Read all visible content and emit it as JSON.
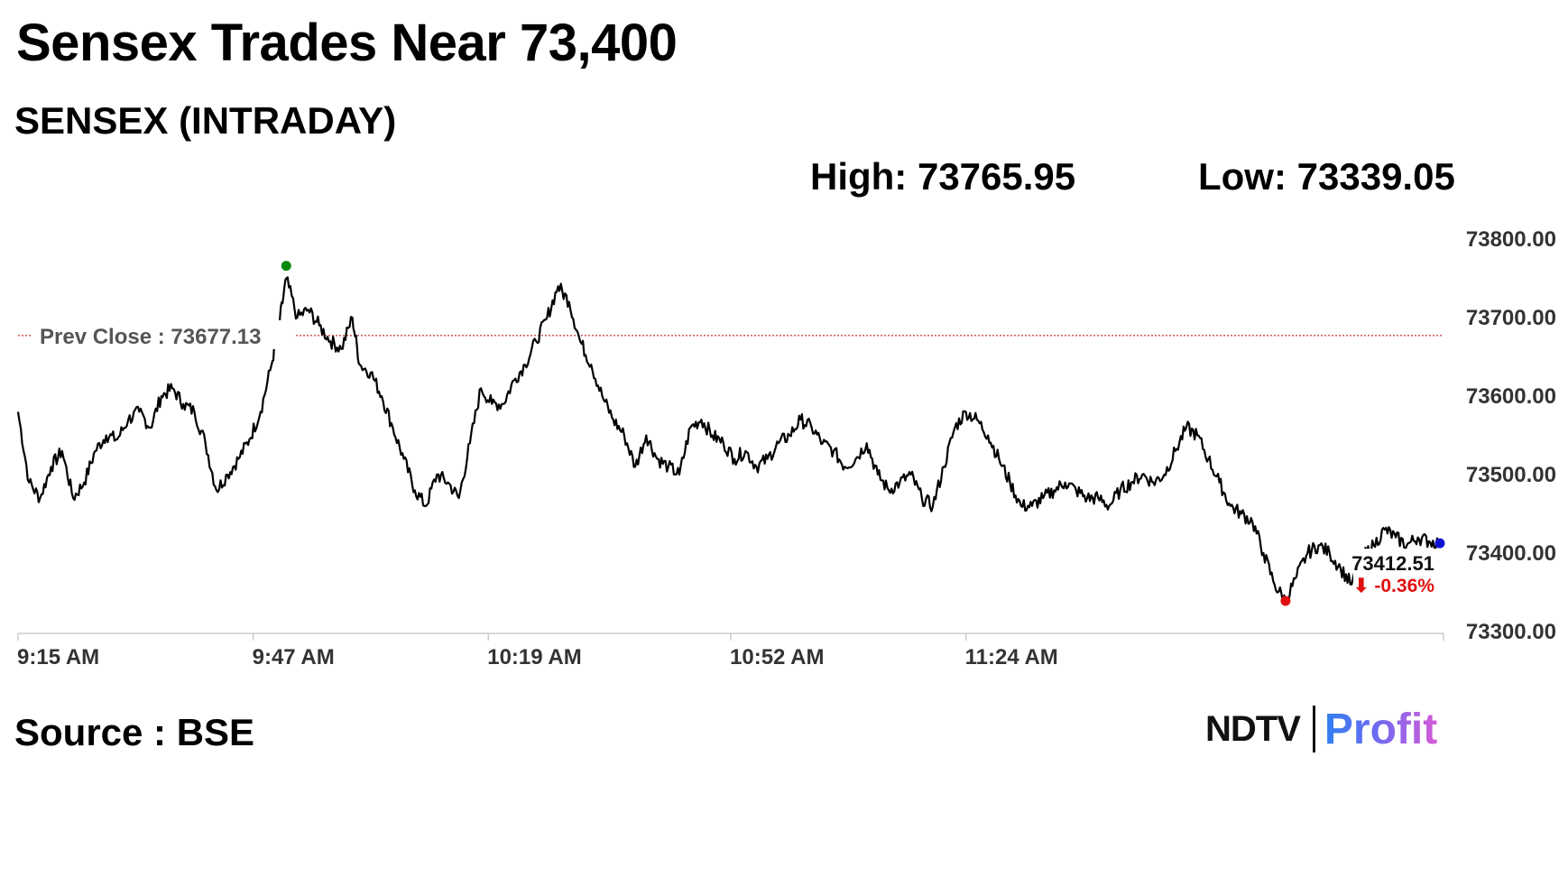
{
  "headline": "Sensex Trades Near 73,400",
  "subtitle": "SENSEX (INTRADAY)",
  "high_label": "High: 73765.95",
  "low_label": "Low: 73339.05",
  "source": "Source : BSE",
  "logo": {
    "ndtv": "NDTV",
    "profit": "Profit"
  },
  "chart_data": {
    "type": "line",
    "series": [
      {
        "points": [
          [
            0,
            73580
          ],
          [
            1.5,
            73490
          ],
          [
            3,
            73470
          ],
          [
            4.5,
            73510
          ],
          [
            6,
            73530
          ],
          [
            7.5,
            73470
          ],
          [
            9,
            73490
          ],
          [
            10.5,
            73530
          ],
          [
            12,
            73550
          ],
          [
            13.5,
            73545
          ],
          [
            15,
            73570
          ],
          [
            16.5,
            73580
          ],
          [
            18,
            73560
          ],
          [
            19.5,
            73600
          ],
          [
            21,
            73610
          ],
          [
            22.5,
            73590
          ],
          [
            24,
            73580
          ],
          [
            25.5,
            73540
          ],
          [
            27,
            73480
          ],
          [
            28.5,
            73500
          ],
          [
            30,
            73520
          ],
          [
            31.5,
            73545
          ],
          [
            33,
            73580
          ],
          [
            34.5,
            73640
          ],
          [
            35.5,
            73690
          ],
          [
            36.5,
            73750
          ],
          [
            38,
            73700
          ],
          [
            39.5,
            73710
          ],
          [
            41,
            73690
          ],
          [
            42.5,
            73670
          ],
          [
            44,
            73660
          ],
          [
            45.5,
            73700
          ],
          [
            46.5,
            73640
          ],
          [
            48,
            73630
          ],
          [
            49.5,
            73600
          ],
          [
            51,
            73560
          ],
          [
            52.5,
            73520
          ],
          [
            54,
            73480
          ],
          [
            55.5,
            73460
          ],
          [
            57,
            73500
          ],
          [
            58.5,
            73490
          ],
          [
            60,
            73470
          ],
          [
            61.5,
            73540
          ],
          [
            63,
            73610
          ],
          [
            64.5,
            73590
          ],
          [
            66,
            73590
          ],
          [
            67.5,
            73620
          ],
          [
            69,
            73640
          ],
          [
            70.5,
            73670
          ],
          [
            72,
            73700
          ],
          [
            73.5,
            73740
          ],
          [
            75,
            73720
          ],
          [
            76.5,
            73670
          ],
          [
            78,
            73640
          ],
          [
            79.5,
            73600
          ],
          [
            81,
            73570
          ],
          [
            82.5,
            73550
          ],
          [
            84,
            73510
          ],
          [
            85.5,
            73550
          ],
          [
            87,
            73520
          ],
          [
            88.5,
            73510
          ],
          [
            90,
            73500
          ],
          [
            91.5,
            73560
          ],
          [
            93,
            73570
          ],
          [
            94.5,
            73550
          ],
          [
            96,
            73540
          ],
          [
            97.5,
            73520
          ],
          [
            99,
            73530
          ],
          [
            100.5,
            73510
          ],
          [
            102,
            73520
          ],
          [
            103.5,
            73540
          ],
          [
            105,
            73550
          ],
          [
            106.5,
            73570
          ],
          [
            108,
            73560
          ],
          [
            109.5,
            73540
          ],
          [
            111,
            73530
          ],
          [
            112.5,
            73510
          ],
          [
            114,
            73520
          ],
          [
            115.5,
            73540
          ],
          [
            117,
            73500
          ],
          [
            118.5,
            73480
          ],
          [
            120,
            73490
          ],
          [
            121.5,
            73500
          ],
          [
            123,
            73470
          ],
          [
            124.5,
            73460
          ],
          [
            126,
            73510
          ],
          [
            127.5,
            73560
          ],
          [
            129,
            73580
          ],
          [
            130.5,
            73570
          ],
          [
            132,
            73550
          ],
          [
            133.5,
            73520
          ],
          [
            135,
            73490
          ],
          [
            136.5,
            73460
          ],
          [
            138,
            73460
          ],
          [
            139.5,
            73470
          ],
          [
            141,
            73480
          ],
          [
            142.5,
            73490
          ],
          [
            144,
            73480
          ],
          [
            145.5,
            73470
          ],
          [
            147,
            73470
          ],
          [
            148.5,
            73460
          ],
          [
            150,
            73480
          ],
          [
            151.5,
            73490
          ],
          [
            153,
            73500
          ],
          [
            154.5,
            73490
          ],
          [
            156,
            73500
          ],
          [
            157.5,
            73530
          ],
          [
            159,
            73560
          ],
          [
            160.5,
            73550
          ],
          [
            162,
            73520
          ],
          [
            163.5,
            73490
          ],
          [
            165,
            73460
          ],
          [
            166.5,
            73450
          ],
          [
            168,
            73440
          ],
          [
            169.5,
            73400
          ],
          [
            171,
            73360
          ],
          [
            172.5,
            73339
          ],
          [
            174,
            73370
          ],
          [
            175.5,
            73400
          ],
          [
            177,
            73410
          ],
          [
            178.5,
            73400
          ],
          [
            180,
            73380
          ],
          [
            181.5,
            73360
          ],
          [
            183,
            73395
          ],
          [
            184.5,
            73410
          ],
          [
            186,
            73430
          ],
          [
            187.5,
            73420
          ],
          [
            189,
            73410
          ],
          [
            190.5,
            73420
          ],
          [
            192,
            73415
          ],
          [
            193.5,
            73412.51
          ]
        ]
      }
    ],
    "ylim": [
      73300,
      73800
    ],
    "yticks": [
      "73800.00",
      "73700.00",
      "73600.00",
      "73500.00",
      "73400.00",
      "73300.00"
    ],
    "yticks_values": [
      73800,
      73700,
      73600,
      73500,
      73400,
      73300
    ],
    "xticks": [
      "9:15 AM",
      "9:47 AM",
      "10:19 AM",
      "10:52 AM",
      "11:24 AM"
    ],
    "xticks_minutes": [
      0,
      32,
      64,
      97,
      129
    ],
    "x_max_minutes": 194,
    "prev_close_label": "Prev Close : 73677.13",
    "prev_close_value": 73677.13,
    "high_point": [
      36.5,
      73765.95
    ],
    "low_point": [
      172.5,
      73339.05
    ],
    "last_value_label": "73412.51",
    "last_change_label": "⬇ -0.36%",
    "colors": {
      "line": "#000000",
      "high": "#0a8a0a",
      "low": "#e01010",
      "last": "#1010d0",
      "prev_close": "#c00000",
      "change": "#e01010"
    }
  }
}
